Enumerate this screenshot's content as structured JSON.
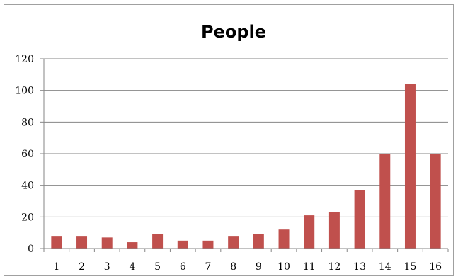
{
  "chart_data": {
    "type": "bar",
    "title": "People",
    "xlabel": "",
    "ylabel": "",
    "categories": [
      "1",
      "2",
      "3",
      "4",
      "5",
      "6",
      "7",
      "8",
      "9",
      "10",
      "11",
      "12",
      "13",
      "14",
      "15",
      "16"
    ],
    "values": [
      8,
      8,
      7,
      4,
      9,
      5,
      5,
      8,
      9,
      12,
      21,
      23,
      37,
      60,
      104,
      60
    ],
    "ylim": [
      0,
      120
    ],
    "yticks": [
      "0",
      "20",
      "40",
      "60",
      "80",
      "100",
      "120"
    ],
    "grid": true,
    "legend": "none",
    "bar_color": "#c0504d"
  }
}
